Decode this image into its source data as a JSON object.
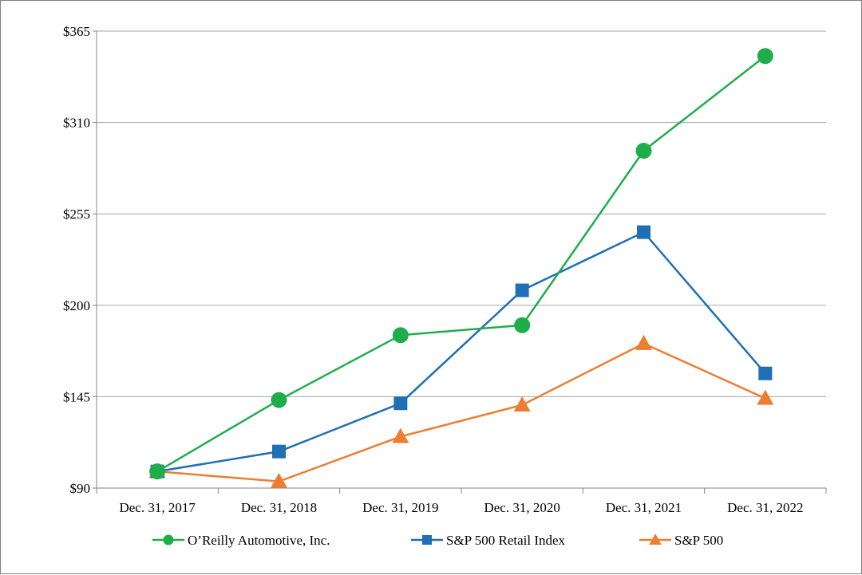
{
  "chart_data": {
    "type": "line",
    "categories": [
      "Dec. 31, 2017",
      "Dec. 31, 2018",
      "Dec. 31, 2019",
      "Dec. 31, 2020",
      "Dec. 31, 2021",
      "Dec. 31, 2022"
    ],
    "series": [
      {
        "name": "O’Reilly Automotive, Inc.",
        "values": [
          100,
          143,
          182,
          188,
          293,
          350
        ],
        "color": "#1fad4c",
        "marker": "circle"
      },
      {
        "name": "S&P 500 Retail Index",
        "values": [
          100,
          112,
          141,
          209,
          244,
          159
        ],
        "color": "#1f6fb4",
        "marker": "square"
      },
      {
        "name": "S&P 500",
        "values": [
          100,
          94,
          121,
          140,
          177,
          144
        ],
        "color": "#ed7d31",
        "marker": "triangle"
      }
    ],
    "y_ticks": [
      90,
      145,
      200,
      255,
      310,
      365
    ],
    "y_tick_labels": [
      "$90",
      "$145",
      "$200",
      "$255",
      "$310",
      "$365"
    ],
    "ylim": [
      90,
      365
    ],
    "grid": true,
    "legend_position": "bottom",
    "title": "",
    "xlabel": "",
    "ylabel": ""
  }
}
